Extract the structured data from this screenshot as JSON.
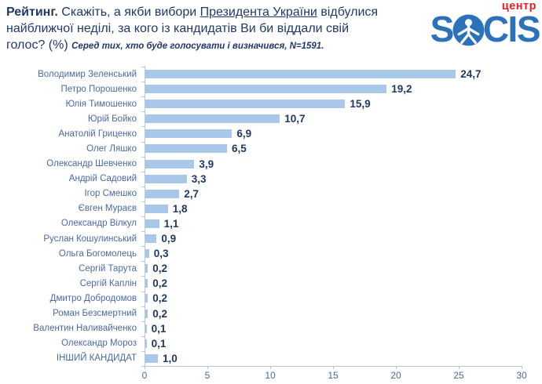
{
  "header": {
    "l1a": "Рейтинг.",
    "l1b": " Скажіть, а якби вибори ",
    "l1c": "Президента України",
    "l1d": " відбулися",
    "l2": "найближчої неділі, за кого із кандидатів Ви би віддали свій",
    "l3": "голос? (%) ",
    "subtitle": "Серед тих, хто буде голосувати і визначився, N=1591."
  },
  "logo": {
    "top": "центр",
    "s1": "S",
    "s2": "CIS",
    "name": "SOCIS центр",
    "blue": "#2c72b8",
    "red": "#e01f26"
  },
  "chart_data": {
    "type": "bar",
    "orientation": "horizontal",
    "title": "Рейтинг. Скажіть, а якби вибори Президента України відбулися найближчої неділі, за кого із кандидатів Ви би віддали свій голос? (%)",
    "subtitle": "Серед тих, хто буде голосувати і визначився, N=1591.",
    "categories": [
      "Володимир Зеленський",
      "Петро Порошенко",
      "Юлія Тимошенко",
      "Юрій Бойко",
      "Анатолій Гриценко",
      "Олег Ляшко",
      "Олександр Шевченко",
      "Андрій Садовий",
      "Ігор Смешко",
      "Євген Мураєв",
      "Олександр Вілкул",
      "Руслан Кошулинський",
      "Ольга Богомолець",
      "Сергій Тарута",
      "Сергій Каплін",
      "Дмитро Добродомов",
      "Роман Безсмертний",
      "Валентин Наливайченко",
      "Олександр Мороз",
      "ІНШИЙ КАНДИДАТ"
    ],
    "values": [
      24.7,
      19.2,
      15.9,
      10.7,
      6.9,
      6.5,
      3.9,
      3.3,
      2.7,
      1.8,
      1.1,
      0.9,
      0.3,
      0.2,
      0.2,
      0.2,
      0.2,
      0.1,
      0.1,
      1.0
    ],
    "value_labels": [
      "24,7",
      "19,2",
      "15,9",
      "10,7",
      "6,9",
      "6,5",
      "3,9",
      "3,3",
      "2,7",
      "1,8",
      "1,1",
      "0,9",
      "0,3",
      "0,2",
      "0,2",
      "0,2",
      "0,2",
      "0,1",
      "0,1",
      "1,0"
    ],
    "xlim": [
      0,
      30
    ],
    "x_ticks": [
      0,
      5,
      10,
      15,
      20,
      25,
      30
    ],
    "grid": false,
    "legend": false,
    "bar_color": "#a9c7e9",
    "value_label_color": "#1f3864",
    "category_label_color": "#4a69a2",
    "axis_color": "#b4c7dc",
    "title_color": "#21386b"
  }
}
